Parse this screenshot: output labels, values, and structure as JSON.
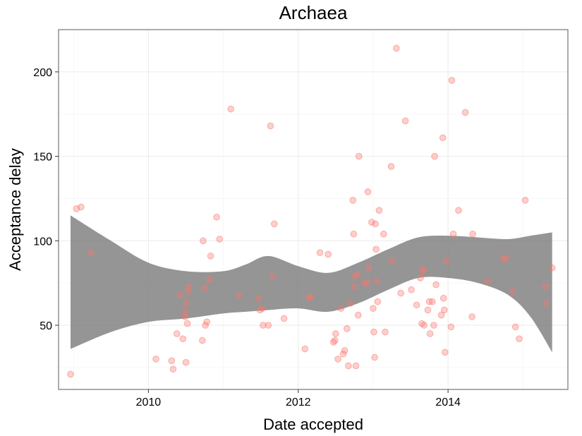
{
  "chart_data": {
    "type": "scatter",
    "title": "Archaea",
    "xlabel": "Date accepted",
    "ylabel": "Acceptance delay",
    "xlim": [
      2008.8,
      2015.6
    ],
    "ylim": [
      12,
      225
    ],
    "xticks": [
      2010,
      2012,
      2014
    ],
    "yticks": [
      50,
      100,
      150,
      200
    ],
    "grid": true,
    "legend": "none",
    "point_color": "#F8766D",
    "ribbon_color": "#7a7a7a",
    "points": [
      {
        "x": 2008.96,
        "y": 21
      },
      {
        "x": 2009.04,
        "y": 119
      },
      {
        "x": 2009.1,
        "y": 120
      },
      {
        "x": 2009.23,
        "y": 93
      },
      {
        "x": 2010.1,
        "y": 30
      },
      {
        "x": 2010.31,
        "y": 29
      },
      {
        "x": 2010.33,
        "y": 24
      },
      {
        "x": 2010.38,
        "y": 45
      },
      {
        "x": 2010.42,
        "y": 68
      },
      {
        "x": 2010.46,
        "y": 42
      },
      {
        "x": 2010.49,
        "y": 58
      },
      {
        "x": 2010.49,
        "y": 55
      },
      {
        "x": 2010.5,
        "y": 28
      },
      {
        "x": 2010.51,
        "y": 63
      },
      {
        "x": 2010.52,
        "y": 51
      },
      {
        "x": 2010.53,
        "y": 70
      },
      {
        "x": 2010.54,
        "y": 73
      },
      {
        "x": 2010.72,
        "y": 41
      },
      {
        "x": 2010.73,
        "y": 100
      },
      {
        "x": 2010.75,
        "y": 72
      },
      {
        "x": 2010.76,
        "y": 50
      },
      {
        "x": 2010.78,
        "y": 52
      },
      {
        "x": 2010.82,
        "y": 77
      },
      {
        "x": 2010.83,
        "y": 91
      },
      {
        "x": 2010.91,
        "y": 114
      },
      {
        "x": 2010.95,
        "y": 101
      },
      {
        "x": 2011.1,
        "y": 178
      },
      {
        "x": 2011.21,
        "y": 68
      },
      {
        "x": 2011.47,
        "y": 66
      },
      {
        "x": 2011.49,
        "y": 59
      },
      {
        "x": 2011.52,
        "y": 60
      },
      {
        "x": 2011.53,
        "y": 50
      },
      {
        "x": 2011.6,
        "y": 50
      },
      {
        "x": 2011.63,
        "y": 168
      },
      {
        "x": 2011.66,
        "y": 79
      },
      {
        "x": 2011.68,
        "y": 110
      },
      {
        "x": 2011.81,
        "y": 54
      },
      {
        "x": 2012.09,
        "y": 36
      },
      {
        "x": 2012.15,
        "y": 66
      },
      {
        "x": 2012.16,
        "y": 67
      },
      {
        "x": 2012.29,
        "y": 93
      },
      {
        "x": 2012.4,
        "y": 92
      },
      {
        "x": 2012.47,
        "y": 40
      },
      {
        "x": 2012.49,
        "y": 41
      },
      {
        "x": 2012.5,
        "y": 45
      },
      {
        "x": 2012.53,
        "y": 30
      },
      {
        "x": 2012.57,
        "y": 60
      },
      {
        "x": 2012.6,
        "y": 33
      },
      {
        "x": 2012.62,
        "y": 35
      },
      {
        "x": 2012.65,
        "y": 48
      },
      {
        "x": 2012.67,
        "y": 26
      },
      {
        "x": 2012.7,
        "y": 63
      },
      {
        "x": 2012.73,
        "y": 124
      },
      {
        "x": 2012.74,
        "y": 104
      },
      {
        "x": 2012.75,
        "y": 73
      },
      {
        "x": 2012.76,
        "y": 79
      },
      {
        "x": 2012.77,
        "y": 26
      },
      {
        "x": 2012.79,
        "y": 80
      },
      {
        "x": 2012.8,
        "y": 56
      },
      {
        "x": 2012.81,
        "y": 150
      },
      {
        "x": 2012.89,
        "y": 75
      },
      {
        "x": 2012.92,
        "y": 75
      },
      {
        "x": 2012.93,
        "y": 129
      },
      {
        "x": 2012.94,
        "y": 84
      },
      {
        "x": 2012.98,
        "y": 111
      },
      {
        "x": 2013.0,
        "y": 60
      },
      {
        "x": 2013.01,
        "y": 46
      },
      {
        "x": 2013.02,
        "y": 31
      },
      {
        "x": 2013.03,
        "y": 110
      },
      {
        "x": 2013.04,
        "y": 95
      },
      {
        "x": 2013.05,
        "y": 76
      },
      {
        "x": 2013.06,
        "y": 64
      },
      {
        "x": 2013.08,
        "y": 118
      },
      {
        "x": 2013.14,
        "y": 104
      },
      {
        "x": 2013.16,
        "y": 46
      },
      {
        "x": 2013.24,
        "y": 144
      },
      {
        "x": 2013.25,
        "y": 88
      },
      {
        "x": 2013.31,
        "y": 214
      },
      {
        "x": 2013.37,
        "y": 69
      },
      {
        "x": 2013.43,
        "y": 171
      },
      {
        "x": 2013.51,
        "y": 71
      },
      {
        "x": 2013.58,
        "y": 62
      },
      {
        "x": 2013.63,
        "y": 78
      },
      {
        "x": 2013.65,
        "y": 51
      },
      {
        "x": 2013.66,
        "y": 82
      },
      {
        "x": 2013.67,
        "y": 83
      },
      {
        "x": 2013.68,
        "y": 50
      },
      {
        "x": 2013.73,
        "y": 59
      },
      {
        "x": 2013.75,
        "y": 64
      },
      {
        "x": 2013.76,
        "y": 45
      },
      {
        "x": 2013.79,
        "y": 64
      },
      {
        "x": 2013.81,
        "y": 50
      },
      {
        "x": 2013.82,
        "y": 150
      },
      {
        "x": 2013.84,
        "y": 74
      },
      {
        "x": 2013.91,
        "y": 56
      },
      {
        "x": 2013.93,
        "y": 161
      },
      {
        "x": 2013.94,
        "y": 66
      },
      {
        "x": 2013.95,
        "y": 59
      },
      {
        "x": 2013.96,
        "y": 34
      },
      {
        "x": 2013.98,
        "y": 88
      },
      {
        "x": 2014.04,
        "y": 49
      },
      {
        "x": 2014.05,
        "y": 195
      },
      {
        "x": 2014.07,
        "y": 104
      },
      {
        "x": 2014.14,
        "y": 118
      },
      {
        "x": 2014.23,
        "y": 176
      },
      {
        "x": 2014.32,
        "y": 55
      },
      {
        "x": 2014.33,
        "y": 104
      },
      {
        "x": 2014.53,
        "y": 76
      },
      {
        "x": 2014.74,
        "y": 89
      },
      {
        "x": 2014.77,
        "y": 90
      },
      {
        "x": 2014.86,
        "y": 70
      },
      {
        "x": 2014.9,
        "y": 49
      },
      {
        "x": 2014.95,
        "y": 42
      },
      {
        "x": 2015.03,
        "y": 124
      },
      {
        "x": 2015.3,
        "y": 73
      },
      {
        "x": 2015.31,
        "y": 63
      },
      {
        "x": 2015.39,
        "y": 84
      }
    ],
    "smooth_band": {
      "x": [
        2008.96,
        2009.5,
        2010.0,
        2010.5,
        2011.0,
        2011.3,
        2011.6,
        2012.0,
        2012.4,
        2012.8,
        2013.2,
        2013.6,
        2014.0,
        2014.4,
        2014.8,
        2015.1,
        2015.39
      ],
      "upper": [
        115,
        100,
        87,
        82,
        82,
        86,
        91,
        85,
        81,
        87,
        95,
        102,
        103,
        102,
        101,
        103,
        105
      ],
      "lower": [
        36,
        46,
        52,
        54,
        57,
        58,
        59,
        60,
        58,
        63,
        71,
        78,
        78,
        75,
        68,
        55,
        34
      ]
    }
  }
}
